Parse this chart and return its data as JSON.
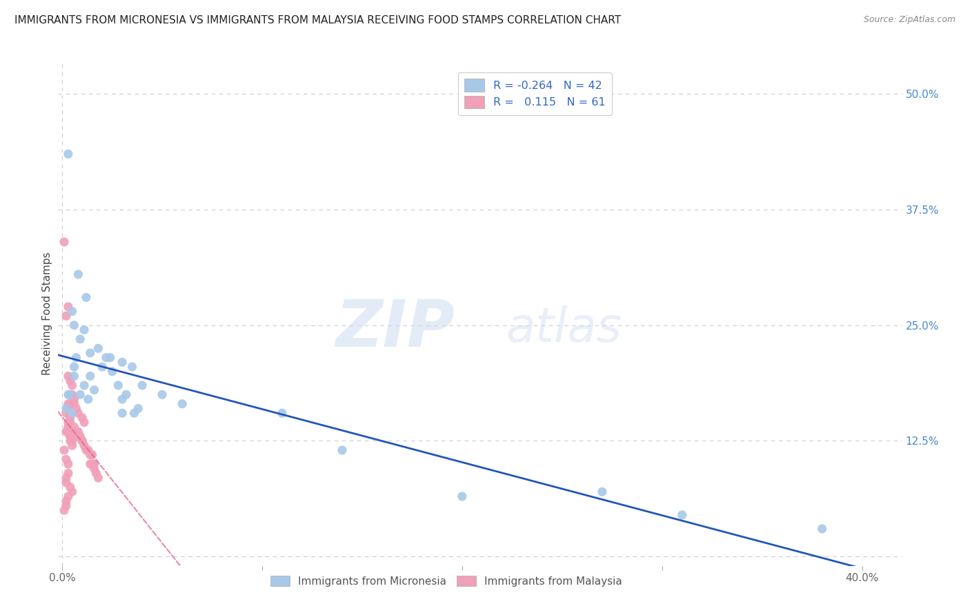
{
  "title": "IMMIGRANTS FROM MICRONESIA VS IMMIGRANTS FROM MALAYSIA RECEIVING FOOD STAMPS CORRELATION CHART",
  "source": "Source: ZipAtlas.com",
  "ylabel": "Receiving Food Stamps",
  "xlim": [
    -0.002,
    0.42
  ],
  "ylim": [
    -0.01,
    0.535
  ],
  "micronesia_color": "#a8c8e8",
  "malaysia_color": "#f0a0b8",
  "micronesia_line_color": "#2255bb",
  "malaysia_line_color": "#dd6688",
  "legend_micronesia_label": "R = -0.264   N = 42",
  "legend_malaysia_label": "R =   0.115   N = 61",
  "legend_bottom_micronesia": "Immigrants from Micronesia",
  "legend_bottom_malaysia": "Immigrants from Malaysia",
  "watermark_zip": "ZIP",
  "watermark_atlas": "atlas",
  "grid_color": "#cccccc",
  "background_color": "#ffffff",
  "title_fontsize": 11,
  "axis_label_fontsize": 11,
  "tick_fontsize": 11,
  "micronesia_x": [
    0.003,
    0.008,
    0.012,
    0.005,
    0.006,
    0.009,
    0.011,
    0.014,
    0.007,
    0.006,
    0.004,
    0.003,
    0.002,
    0.005,
    0.006,
    0.009,
    0.011,
    0.014,
    0.016,
    0.013,
    0.018,
    0.022,
    0.025,
    0.028,
    0.02,
    0.032,
    0.024,
    0.03,
    0.035,
    0.03,
    0.04,
    0.036,
    0.038,
    0.03,
    0.05,
    0.06,
    0.11,
    0.38,
    0.2,
    0.14,
    0.27,
    0.31
  ],
  "micronesia_y": [
    0.435,
    0.305,
    0.28,
    0.265,
    0.25,
    0.235,
    0.245,
    0.22,
    0.215,
    0.205,
    0.175,
    0.175,
    0.16,
    0.155,
    0.195,
    0.175,
    0.185,
    0.195,
    0.18,
    0.17,
    0.225,
    0.215,
    0.2,
    0.185,
    0.205,
    0.175,
    0.215,
    0.21,
    0.205,
    0.17,
    0.185,
    0.155,
    0.16,
    0.155,
    0.175,
    0.165,
    0.155,
    0.03,
    0.065,
    0.115,
    0.07,
    0.045
  ],
  "malaysia_x": [
    0.001,
    0.002,
    0.003,
    0.004,
    0.002,
    0.003,
    0.002,
    0.003,
    0.004,
    0.005,
    0.001,
    0.002,
    0.003,
    0.003,
    0.002,
    0.002,
    0.004,
    0.005,
    0.003,
    0.002,
    0.002,
    0.001,
    0.003,
    0.003,
    0.004,
    0.004,
    0.004,
    0.003,
    0.003,
    0.004,
    0.004,
    0.005,
    0.006,
    0.007,
    0.008,
    0.008,
    0.009,
    0.01,
    0.01,
    0.011,
    0.012,
    0.013,
    0.014,
    0.015,
    0.015,
    0.016,
    0.014,
    0.016,
    0.017,
    0.018,
    0.003,
    0.004,
    0.005,
    0.004,
    0.005,
    0.006,
    0.006,
    0.007,
    0.008,
    0.01,
    0.011
  ],
  "malaysia_y": [
    0.34,
    0.26,
    0.27,
    0.165,
    0.155,
    0.145,
    0.135,
    0.135,
    0.13,
    0.125,
    0.115,
    0.105,
    0.1,
    0.09,
    0.085,
    0.08,
    0.075,
    0.07,
    0.065,
    0.06,
    0.055,
    0.05,
    0.165,
    0.16,
    0.155,
    0.15,
    0.145,
    0.14,
    0.135,
    0.13,
    0.125,
    0.12,
    0.14,
    0.135,
    0.135,
    0.13,
    0.13,
    0.125,
    0.125,
    0.12,
    0.115,
    0.115,
    0.11,
    0.11,
    0.1,
    0.1,
    0.1,
    0.095,
    0.09,
    0.085,
    0.195,
    0.19,
    0.185,
    0.175,
    0.175,
    0.17,
    0.165,
    0.16,
    0.155,
    0.15,
    0.145
  ]
}
